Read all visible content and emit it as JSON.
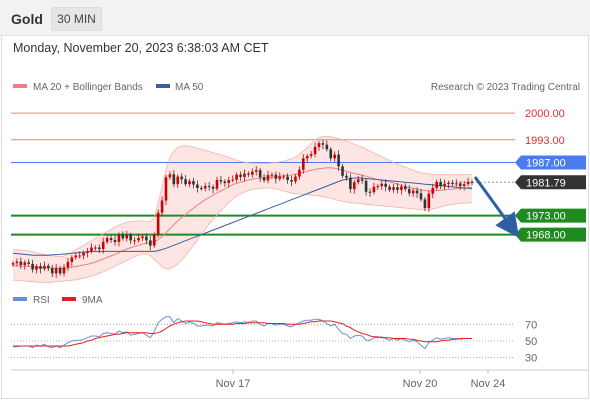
{
  "header": {
    "title": "Gold",
    "timeframe": "30 MIN"
  },
  "datetime": "Monday, November 20, 2023 6:38:03 AM CET",
  "legend": {
    "bollinger": "MA 20 + Bollinger Bands",
    "ma50": "MA 50",
    "credit": "Research © 2023 Trading Central"
  },
  "rsi_legend": {
    "rsi": "RSI",
    "ma": "9MA"
  },
  "colors": {
    "bollinger": "#f08080",
    "band_fill": "#fde0de",
    "ma50": "#3a5f9c",
    "resistance": "#f08080",
    "pivot": "#4a7cf0",
    "support": "#1f8a1f",
    "price_tag": "#333333",
    "arrow": "#2e5fa6",
    "rsi": "#6a8fe0",
    "rsi_ma": "#e02020",
    "candle_up": "#cc0000",
    "candle_down": "#333333"
  },
  "chart_data": [
    {
      "type": "candlestick",
      "title": "Gold",
      "timeframe": "30 MIN",
      "x_ticks": [
        "Nov 17",
        "Nov 20",
        "Nov 24"
      ],
      "ylim": [
        1955,
        2004
      ],
      "last_price": 1981.79,
      "levels": [
        {
          "label": "2000.00",
          "value": 2000.0,
          "kind": "resistance"
        },
        {
          "label": "1993.00",
          "value": 1993.0,
          "kind": "resistance"
        },
        {
          "label": "1987.00",
          "value": 1987.0,
          "kind": "pivot"
        },
        {
          "label": "1973.00",
          "value": 1973.0,
          "kind": "support"
        },
        {
          "label": "1968.00",
          "value": 1968.0,
          "kind": "support"
        }
      ],
      "close": [
        1960.5,
        1960.9,
        1960.0,
        1960.7,
        1960.3,
        1958.8,
        1959.7,
        1959.0,
        1959.8,
        1959.2,
        1957.8,
        1959.2,
        1957.8,
        1959.4,
        1960.8,
        1962.0,
        1962.5,
        1962.5,
        1963.2,
        1963.6,
        1964.6,
        1964.6,
        1964.2,
        1966.1,
        1967.1,
        1966.6,
        1966.1,
        1968.0,
        1967.0,
        1967.9,
        1966.5,
        1966.5,
        1967.1,
        1967.5,
        1966.5,
        1965.1,
        1968.0,
        1973.8,
        1977.0,
        1983.1,
        1983.9,
        1981.3,
        1983.3,
        1982.6,
        1981.3,
        1982.1,
        1981.2,
        1980.3,
        1980.2,
        1980.8,
        1980.6,
        1980.1,
        1982.4,
        1982.0,
        1981.6,
        1982.4,
        1982.5,
        1983.8,
        1983.2,
        1984.1,
        1983.8,
        1984.6,
        1985.0,
        1983.1,
        1982.3,
        1983.7,
        1983.8,
        1982.7,
        1983.3,
        1983.3,
        1982.4,
        1982.0,
        1983.3,
        1985.1,
        1988.1,
        1988.7,
        1989.2,
        1991.1,
        1992.1,
        1991.7,
        1990.5,
        1988.1,
        1989.1,
        1986.0,
        1983.5,
        1983.0,
        1980.0,
        1981.8,
        1982.6,
        1982.2,
        1979.3,
        1979.2,
        1980.6,
        1980.8,
        1981.4,
        1980.6,
        1979.8,
        1980.5,
        1979.8,
        1980.7,
        1980.0,
        1978.9,
        1979.6,
        1978.9,
        1977.3,
        1975.0,
        1978.8,
        1980.3,
        1981.9,
        1980.8,
        1981.4,
        1981.6,
        1981.4,
        1981.5,
        1980.8,
        1981.3,
        1981.9,
        1981.79
      ],
      "ma20": [
        1959.8,
        1959.8,
        1959.7,
        1959.7,
        1959.6,
        1959.5,
        1959.4,
        1959.4,
        1959.3,
        1959.2,
        1959.2,
        1959.2,
        1959.1,
        1959.1,
        1959.3,
        1959.4,
        1959.6,
        1959.8,
        1960.0,
        1960.2,
        1960.5,
        1960.8,
        1961.2,
        1961.6,
        1962.0,
        1962.4,
        1962.8,
        1963.3,
        1963.8,
        1964.2,
        1964.6,
        1964.9,
        1965.2,
        1965.5,
        1965.7,
        1965.9,
        1966.1,
        1966.7,
        1967.5,
        1968.5,
        1969.6,
        1970.6,
        1971.6,
        1972.5,
        1973.3,
        1974.2,
        1975.0,
        1975.8,
        1976.5,
        1977.2,
        1977.8,
        1978.4,
        1979.0,
        1979.5,
        1980.0,
        1980.6,
        1981.2,
        1981.5,
        1981.8,
        1982.1,
        1982.4,
        1982.6,
        1982.8,
        1982.9,
        1983.0,
        1983.1,
        1983.2,
        1983.3,
        1983.4,
        1983.5,
        1983.6,
        1983.7,
        1983.9,
        1984.1,
        1984.4,
        1984.7,
        1985.0,
        1985.2,
        1985.4,
        1985.5,
        1985.6,
        1985.6,
        1985.5,
        1985.3,
        1985.0,
        1984.7,
        1984.4,
        1984.1,
        1983.9,
        1983.7,
        1983.4,
        1983.1,
        1982.8,
        1982.5,
        1982.3,
        1982.1,
        1981.9,
        1981.6,
        1981.3,
        1981.0,
        1980.7,
        1980.4,
        1980.2,
        1980.0,
        1979.8,
        1979.6,
        1979.5,
        1979.5,
        1979.6,
        1979.7,
        1979.8,
        1979.9,
        1980.0,
        1980.1,
        1980.2,
        1980.3,
        1980.4,
        1980.5
      ],
      "band_upper": [
        1964.0,
        1964.0,
        1963.9,
        1963.8,
        1963.7,
        1963.5,
        1963.2,
        1963.0,
        1962.8,
        1962.6,
        1962.4,
        1962.3,
        1962.2,
        1962.4,
        1962.8,
        1963.4,
        1964.0,
        1964.6,
        1965.2,
        1965.8,
        1966.4,
        1967.0,
        1967.6,
        1968.2,
        1968.8,
        1969.4,
        1970.0,
        1970.5,
        1970.9,
        1971.2,
        1971.4,
        1971.5,
        1971.6,
        1971.6,
        1971.5,
        1971.4,
        1972.5,
        1976.5,
        1980.5,
        1985.0,
        1988.5,
        1990.0,
        1991.0,
        1991.3,
        1991.4,
        1991.3,
        1991.1,
        1990.8,
        1990.5,
        1990.2,
        1989.9,
        1989.6,
        1989.3,
        1989.0,
        1988.7,
        1988.4,
        1988.0,
        1987.6,
        1987.3,
        1987.1,
        1986.9,
        1986.8,
        1986.8,
        1986.8,
        1986.8,
        1986.8,
        1986.9,
        1987.0,
        1987.2,
        1987.4,
        1987.7,
        1988.0,
        1988.5,
        1989.2,
        1990.0,
        1991.0,
        1992.0,
        1993.0,
        1993.5,
        1993.8,
        1993.9,
        1993.8,
        1993.6,
        1993.3,
        1993.0,
        1992.6,
        1992.2,
        1991.8,
        1991.4,
        1991.0,
        1990.5,
        1990.0,
        1989.5,
        1989.0,
        1988.5,
        1988.0,
        1987.5,
        1987.0,
        1986.6,
        1986.2,
        1985.8,
        1985.4,
        1985.0,
        1984.6,
        1984.3,
        1984.1,
        1984.0,
        1983.9,
        1983.8,
        1983.8,
        1983.8,
        1983.8,
        1983.8,
        1983.8,
        1983.8,
        1983.8,
        1983.8,
        1983.8
      ],
      "band_lower": [
        1956.0,
        1956.0,
        1955.9,
        1955.8,
        1955.7,
        1955.6,
        1955.5,
        1955.4,
        1955.4,
        1955.4,
        1955.5,
        1955.6,
        1955.7,
        1955.8,
        1955.9,
        1956.0,
        1956.1,
        1956.3,
        1956.5,
        1956.8,
        1957.1,
        1957.4,
        1957.8,
        1958.2,
        1958.7,
        1959.2,
        1959.7,
        1960.2,
        1960.7,
        1961.2,
        1961.7,
        1962.2,
        1962.6,
        1962.9,
        1962.9,
        1962.5,
        1961.5,
        1960.5,
        1959.5,
        1959.0,
        1959.0,
        1959.5,
        1960.3,
        1961.3,
        1962.5,
        1963.8,
        1965.2,
        1966.6,
        1968.0,
        1969.4,
        1970.8,
        1972.0,
        1973.2,
        1974.3,
        1975.4,
        1976.4,
        1977.4,
        1978.2,
        1978.8,
        1979.2,
        1979.6,
        1979.9,
        1980.1,
        1980.2,
        1980.3,
        1980.3,
        1980.2,
        1980.0,
        1979.8,
        1979.5,
        1979.2,
        1979.0,
        1978.8,
        1978.7,
        1978.6,
        1978.5,
        1978.4,
        1978.3,
        1978.2,
        1978.0,
        1977.8,
        1977.6,
        1977.3,
        1977.0,
        1976.8,
        1976.6,
        1976.4,
        1976.3,
        1976.2,
        1976.1,
        1976.0,
        1975.9,
        1975.8,
        1975.7,
        1975.6,
        1975.5,
        1975.4,
        1975.3,
        1975.2,
        1975.1,
        1975.0,
        1974.9,
        1974.8,
        1974.7,
        1974.6,
        1974.5,
        1974.6,
        1974.8,
        1975.0,
        1975.3,
        1975.6,
        1975.8,
        1976.0,
        1976.1,
        1976.2,
        1976.3,
        1976.4,
        1976.5
      ],
      "ma50": [
        1963.1,
        1963.0,
        1962.9,
        1962.8,
        1962.7,
        1962.6,
        1962.6,
        1962.6,
        1962.6,
        1962.6,
        1962.7,
        1962.7,
        1962.8,
        1962.9,
        1963.0,
        1963.1,
        1963.2,
        1963.3,
        1963.4,
        1963.5,
        1963.6,
        1963.6,
        1963.6,
        1963.6,
        1963.6,
        1963.6,
        1963.6,
        1963.6,
        1963.6,
        1963.6,
        1963.6,
        1963.6,
        1963.6,
        1963.6,
        1963.6,
        1963.6,
        1963.6,
        1963.8,
        1964.1,
        1964.4,
        1964.8,
        1965.2,
        1965.6,
        1966.0,
        1966.4,
        1966.8,
        1967.2,
        1967.6,
        1968.0,
        1968.4,
        1968.8,
        1969.2,
        1969.6,
        1970.0,
        1970.4,
        1970.8,
        1971.2,
        1971.6,
        1972.0,
        1972.4,
        1972.8,
        1973.2,
        1973.6,
        1974.0,
        1974.4,
        1974.8,
        1975.2,
        1975.6,
        1976.0,
        1976.4,
        1976.8,
        1977.2,
        1977.6,
        1978.0,
        1978.4,
        1978.8,
        1979.2,
        1979.6,
        1980.0,
        1980.4,
        1980.8,
        1981.2,
        1981.6,
        1982.0,
        1982.4,
        1982.6,
        1982.8,
        1982.9,
        1983.0,
        1982.9,
        1982.8,
        1982.7,
        1982.6,
        1982.5,
        1982.4,
        1982.3,
        1982.2,
        1982.1,
        1982.0,
        1981.9,
        1981.8,
        1981.7,
        1981.6,
        1981.5,
        1981.4,
        1981.3,
        1981.2,
        1981.1,
        1981.0,
        1980.9,
        1980.8,
        1980.7,
        1980.6,
        1980.5,
        1980.4,
        1980.3,
        1980.2,
        1980.1
      ]
    },
    {
      "type": "line",
      "series": [
        {
          "name": "RSI",
          "values": [
            43,
            43,
            44,
            44,
            44,
            42,
            45,
            44,
            46,
            43,
            42,
            44,
            42,
            45,
            48,
            50,
            51,
            51,
            52,
            54,
            56,
            56,
            55,
            59,
            60,
            59,
            58,
            62,
            60,
            61,
            57,
            58,
            59,
            60,
            57,
            54,
            61,
            72,
            76,
            79,
            79,
            72,
            77,
            74,
            71,
            73,
            71,
            68,
            68,
            69,
            69,
            68,
            72,
            71,
            70,
            71,
            72,
            73,
            72,
            73,
            72,
            74,
            74,
            70,
            68,
            71,
            71,
            69,
            70,
            70,
            68,
            67,
            70,
            72,
            74,
            75,
            75,
            76,
            76,
            74,
            71,
            68,
            70,
            64,
            59,
            58,
            53,
            56,
            57,
            56,
            51,
            51,
            54,
            54,
            55,
            53,
            51,
            53,
            51,
            53,
            51,
            49,
            51,
            49,
            45,
            41,
            48,
            51,
            54,
            52,
            53,
            54,
            53,
            53,
            52,
            53,
            53,
            53
          ]
        },
        {
          "name": "9MA",
          "values": [
            44,
            44,
            44,
            44,
            44,
            44,
            44,
            44,
            44,
            44,
            44,
            44,
            44,
            44,
            44,
            45,
            46,
            47,
            48,
            50,
            51,
            53,
            54,
            55,
            56,
            57,
            58,
            58,
            59,
            60,
            60,
            60,
            60,
            60,
            60,
            59,
            59,
            60,
            62,
            65,
            68,
            70,
            72,
            73,
            74,
            74,
            74,
            74,
            73,
            72,
            71,
            70,
            70,
            70,
            70,
            70,
            70,
            71,
            71,
            71,
            72,
            72,
            72,
            72,
            72,
            71,
            71,
            71,
            71,
            71,
            70,
            70,
            70,
            70,
            71,
            72,
            73,
            73,
            74,
            74,
            74,
            74,
            73,
            72,
            71,
            68,
            66,
            63,
            61,
            59,
            58,
            56,
            55,
            55,
            54,
            54,
            54,
            53,
            53,
            53,
            53,
            52,
            52,
            51,
            50,
            49,
            49,
            49,
            49,
            50,
            51,
            51,
            52,
            52,
            53,
            53,
            53,
            53
          ]
        }
      ],
      "y_ticks": [
        "70",
        "50",
        "30"
      ],
      "ylim": [
        20,
        80
      ]
    }
  ]
}
